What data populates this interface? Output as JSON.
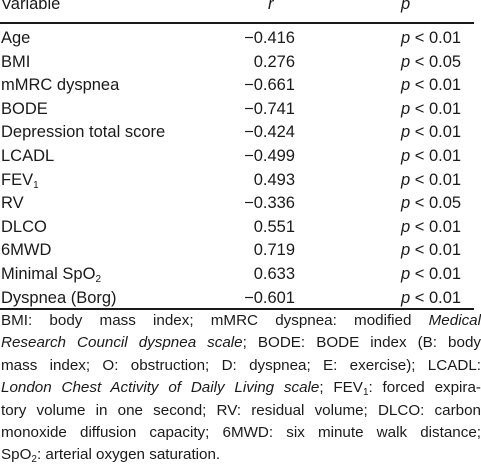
{
  "table": {
    "headers": {
      "variable": "Variable",
      "r": "r",
      "p": "p"
    },
    "rows": [
      {
        "variable": "Age",
        "r": "−0.416",
        "p_prefix": "p",
        "p_rest": " < 0.01"
      },
      {
        "variable": "BMI",
        "r": "0.276",
        "p_prefix": "p",
        "p_rest": " < 0.05"
      },
      {
        "variable": "mMRC dyspnea",
        "r": "−0.661",
        "p_prefix": "p",
        "p_rest": " < 0.01"
      },
      {
        "variable": "BODE",
        "r": "−0.741",
        "p_prefix": "p",
        "p_rest": " < 0.01"
      },
      {
        "variable": "Depression total score",
        "r": "−0.424",
        "p_prefix": "p",
        "p_rest": " < 0.01"
      },
      {
        "variable": "LCADL",
        "r": "−0.499",
        "p_prefix": "p",
        "p_rest": " < 0.01"
      },
      {
        "variable": "FEV",
        "var_sub": "1",
        "r": "0.493",
        "p_prefix": "p",
        "p_rest": " < 0.01"
      },
      {
        "variable": "RV",
        "r": "−0.336",
        "p_prefix": "p",
        "p_rest": " < 0.05"
      },
      {
        "variable": "DLCO",
        "r": "0.551",
        "p_prefix": "p",
        "p_rest": " < 0.01"
      },
      {
        "variable": "6MWD",
        "r": "0.719",
        "p_prefix": "p",
        "p_rest": " < 0.01"
      },
      {
        "variable": "Minimal SpO",
        "var_sub": "2",
        "r": "0.633",
        "p_prefix": "p",
        "p_rest": " < 0.01"
      },
      {
        "variable": "Dyspnea (Borg)",
        "r": "−0.601",
        "p_prefix": "p",
        "p_rest": " < 0.01"
      }
    ]
  },
  "footnote": {
    "l1a": "BMI: body mass index; mMRC dyspnea: modified ",
    "l1b": "Medical",
    "l2a": "Research Council dyspnea scale",
    "l2b": "; BODE: BODE index (B: body",
    "l3": "mass index; O: obstruction; D: dyspnea; E: exercise); LCADL:",
    "l4a": "London Chest Activity of Daily Living scale",
    "l4b": "; FEV",
    "l4sub": "1",
    "l4c": ": forced expira-",
    "l5": "tory volume in one second; RV: residual volume; DLCO: carbon",
    "l6": "monoxide diffusion capacity; 6MWD: six minute walk distance;",
    "l7a": "SpO",
    "l7sub": "2",
    "l7b": ": arterial oxygen saturation."
  }
}
